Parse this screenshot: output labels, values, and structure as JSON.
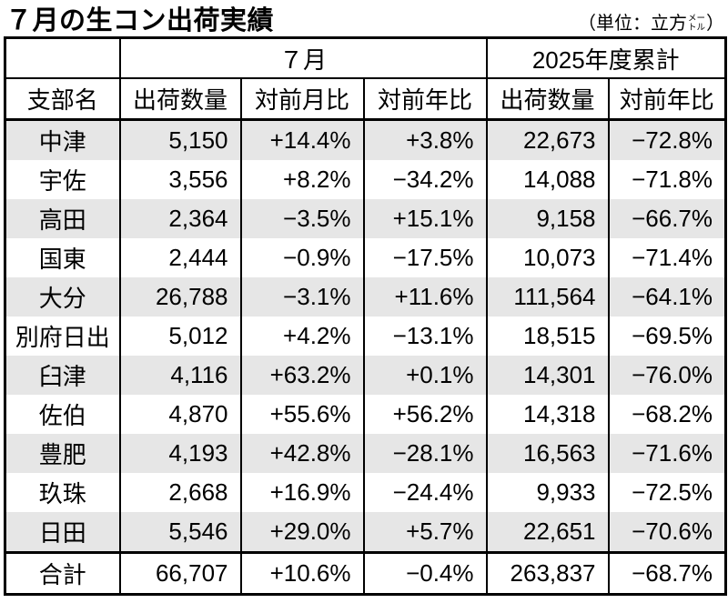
{
  "title": "７月の生コン出荷実績",
  "unit": {
    "prefix": "（単位：立方",
    "stack_top": "メー",
    "stack_bottom": "トル",
    "suffix": "）"
  },
  "table": {
    "groups": {
      "july": "７月",
      "fiscal": "2025年度累計"
    },
    "columns": [
      "支部名",
      "出荷数量",
      "対前月比",
      "対前年比",
      "出荷数量",
      "対前年比"
    ],
    "rows": [
      {
        "name": "中津",
        "cells": [
          "5,150",
          "+14.4%",
          "+3.8%",
          "22,673",
          "−72.8%"
        ]
      },
      {
        "name": "宇佐",
        "cells": [
          "3,556",
          "+8.2%",
          "−34.2%",
          "14,088",
          "−71.8%"
        ]
      },
      {
        "name": "高田",
        "cells": [
          "2,364",
          "−3.5%",
          "+15.1%",
          "9,158",
          "−66.7%"
        ]
      },
      {
        "name": "国東",
        "cells": [
          "2,444",
          "−0.9%",
          "−17.5%",
          "10,073",
          "−71.4%"
        ]
      },
      {
        "name": "大分",
        "cells": [
          "26,788",
          "−3.1%",
          "+11.6%",
          "111,564",
          "−64.1%"
        ]
      },
      {
        "name": "別府日出",
        "cells": [
          "5,012",
          "+4.2%",
          "−13.1%",
          "18,515",
          "−69.5%"
        ]
      },
      {
        "name": "臼津",
        "cells": [
          "4,116",
          "+63.2%",
          "+0.1%",
          "14,301",
          "−76.0%"
        ]
      },
      {
        "name": "佐伯",
        "cells": [
          "4,870",
          "+55.6%",
          "+56.2%",
          "14,318",
          "−68.2%"
        ]
      },
      {
        "name": "豊肥",
        "cells": [
          "4,193",
          "+42.8%",
          "−28.1%",
          "16,563",
          "−71.6%"
        ]
      },
      {
        "name": "玖珠",
        "cells": [
          "2,668",
          "+16.9%",
          "−24.4%",
          "9,933",
          "−72.5%"
        ]
      },
      {
        "name": "日田",
        "cells": [
          "5,546",
          "+29.0%",
          "+5.7%",
          "22,651",
          "−70.6%"
        ]
      }
    ],
    "total_row": {
      "name": "合計",
      "cells": [
        "66,707",
        "+10.6%",
        "−0.4%",
        "263,837",
        "−68.7%"
      ]
    }
  },
  "colors": {
    "row_shade": "#e6e6e6",
    "border": "#000000",
    "background": "#ffffff"
  }
}
